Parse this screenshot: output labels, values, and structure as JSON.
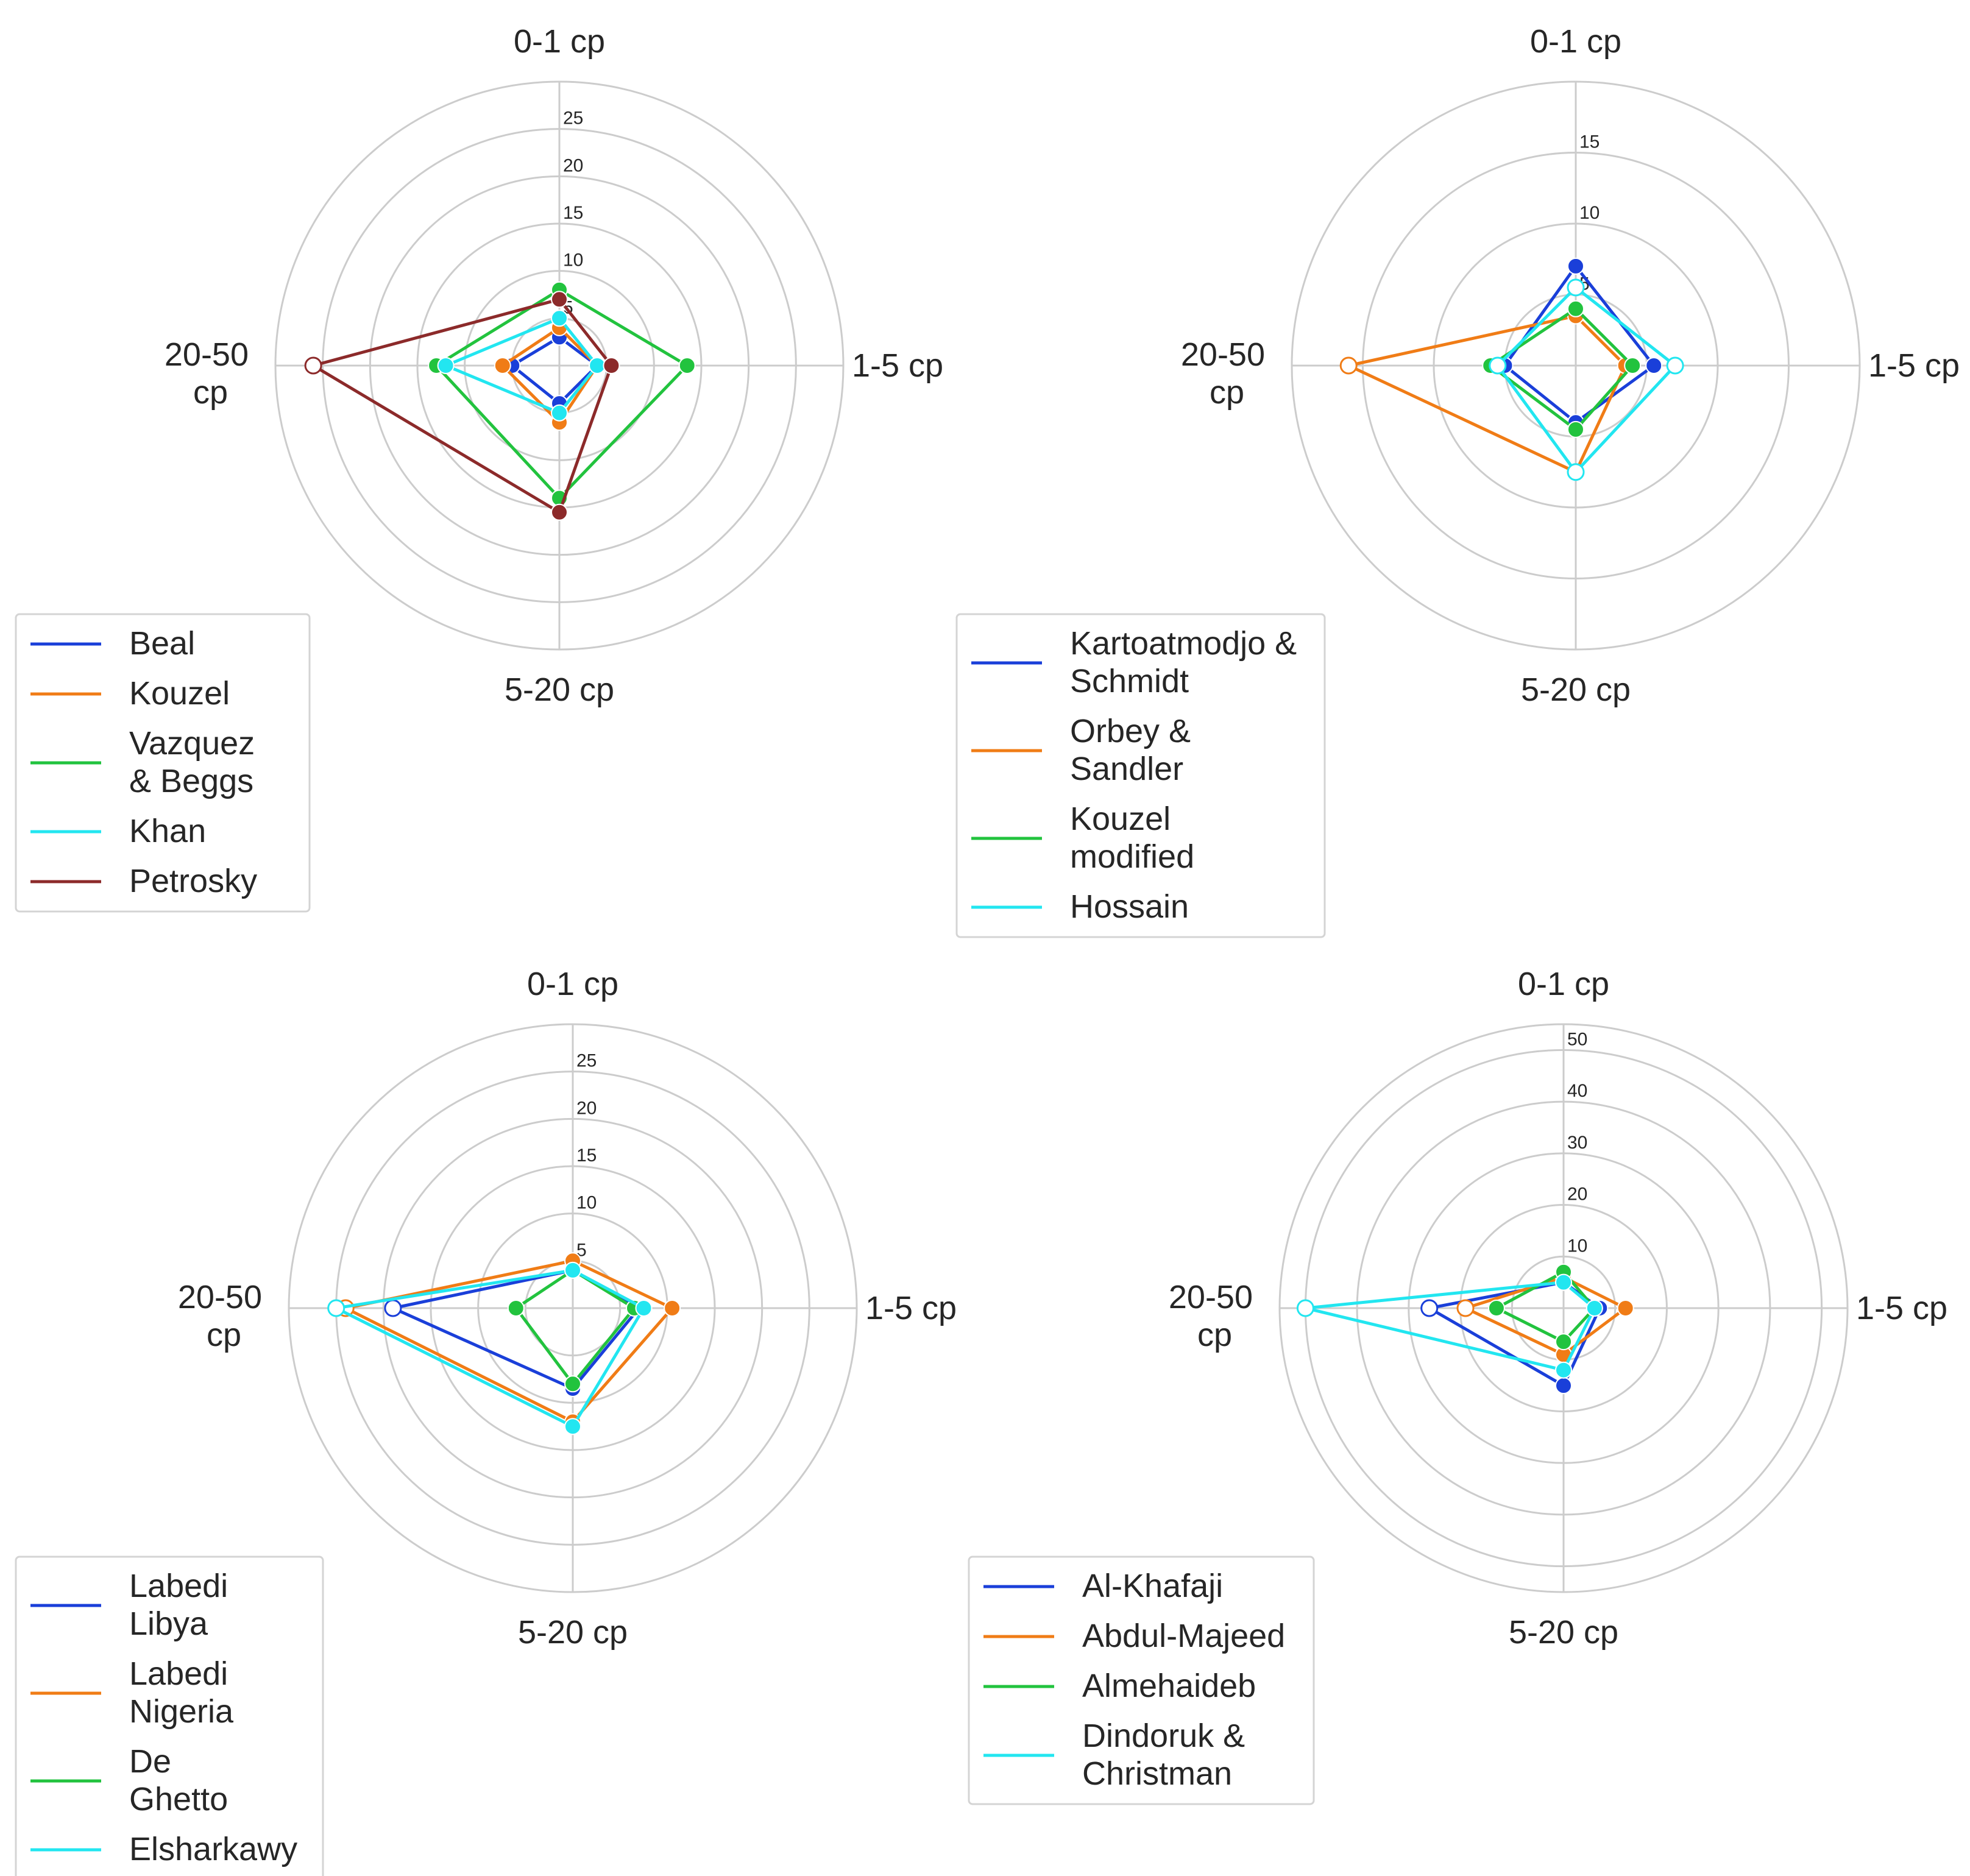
{
  "chart_data": [
    {
      "type": "radar",
      "axes": [
        "0-1 cp",
        "1-5 cp",
        "5-20 cp",
        "20-50 cp"
      ],
      "rmax": 30,
      "ticks": [
        5,
        10,
        15,
        20,
        25
      ],
      "grid": true,
      "legend_position": "bottom-left",
      "series": [
        {
          "name": "Beal",
          "color": "#1a3fd9",
          "values": [
            3,
            4,
            4,
            5
          ],
          "marker": "filled"
        },
        {
          "name": "Kouzel",
          "color": "#f07c16",
          "values": [
            4,
            4,
            6,
            6
          ],
          "marker": "filled"
        },
        {
          "name": "Vazquez & Beggs",
          "color": "#22c33e",
          "values": [
            8,
            13.5,
            14,
            13
          ],
          "marker": "filled"
        },
        {
          "name": "Khan",
          "color": "#22e6f0",
          "values": [
            5,
            4,
            5,
            12
          ],
          "marker": "filled"
        },
        {
          "name": "Petrosky",
          "color": "#8c2a2a",
          "values": [
            7,
            5.5,
            15.5,
            26
          ],
          "marker": "last-hollow"
        }
      ]
    },
    {
      "type": "radar",
      "axes": [
        "0-1 cp",
        "1-5 cp",
        "5-20 cp",
        "20-50 cp"
      ],
      "rmax": 20,
      "ticks": [
        5,
        10,
        15
      ],
      "grid": true,
      "legend_position": "bottom-left",
      "series": [
        {
          "name": "Kartoatmodjo & Schmidt",
          "color": "#1a3fd9",
          "values": [
            7,
            5.5,
            4,
            5
          ],
          "marker": "filled"
        },
        {
          "name": "Orbey & Sandler",
          "color": "#f07c16",
          "values": [
            3.5,
            3.5,
            7.5,
            16
          ],
          "marker": "last-hollow"
        },
        {
          "name": "Kouzel modified",
          "color": "#22c33e",
          "values": [
            4,
            4,
            4.5,
            6
          ],
          "marker": "filled"
        },
        {
          "name": "Hossain",
          "color": "#22e6f0",
          "values": [
            5.5,
            7,
            7.5,
            5.5
          ],
          "marker": "hollow"
        }
      ]
    },
    {
      "type": "radar",
      "axes": [
        "0-1 cp",
        "1-5 cp",
        "5-20 cp",
        "20-50 cp"
      ],
      "rmax": 30,
      "ticks": [
        5,
        10,
        15,
        20,
        25
      ],
      "grid": true,
      "legend_position": "bottom-left",
      "series": [
        {
          "name": "Labedi Libya",
          "color": "#1a3fd9",
          "values": [
            4,
            7,
            8.5,
            19
          ],
          "marker": "last-hollow"
        },
        {
          "name": "Labedi Nigeria",
          "color": "#f07c16",
          "values": [
            5,
            10.5,
            12,
            24
          ],
          "marker": "last-hollow"
        },
        {
          "name": "De Ghetto",
          "color": "#22c33e",
          "values": [
            4,
            6.5,
            8,
            6
          ],
          "marker": "filled"
        },
        {
          "name": "Elsharkawy",
          "color": "#22e6f0",
          "values": [
            4,
            7.5,
            12.5,
            25
          ],
          "marker": "last-hollow"
        }
      ]
    },
    {
      "type": "radar",
      "axes": [
        "0-1 cp",
        "1-5 cp",
        "5-20 cp",
        "20-50 cp"
      ],
      "rmax": 55,
      "ticks": [
        10,
        20,
        30,
        40,
        50
      ],
      "grid": true,
      "legend_position": "bottom-left",
      "series": [
        {
          "name": "Al-Khafaji",
          "color": "#1a3fd9",
          "values": [
            5,
            7,
            15,
            26
          ],
          "marker": "last-hollow"
        },
        {
          "name": "Abdul-Majeed",
          "color": "#f07c16",
          "values": [
            6,
            12,
            9,
            19
          ],
          "marker": "last-hollow"
        },
        {
          "name": "Almehaideb",
          "color": "#22c33e",
          "values": [
            7,
            6,
            6.5,
            13
          ],
          "marker": "filled"
        },
        {
          "name": "Dindoruk & Christman",
          "color": "#22e6f0",
          "values": [
            5,
            6,
            12,
            50
          ],
          "marker": "last-hollow"
        }
      ]
    }
  ]
}
